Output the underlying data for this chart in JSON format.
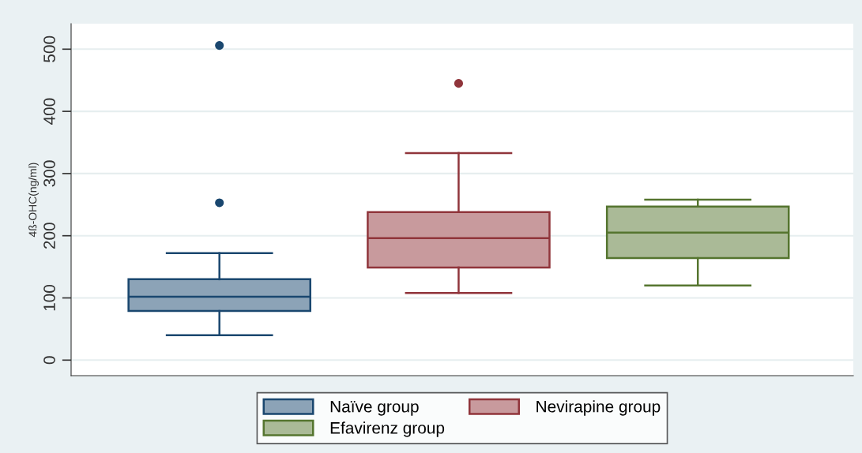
{
  "chart_data": {
    "type": "box",
    "ylabel": "4ß-OHC(ng/ml)",
    "categories": [
      null
    ],
    "ylim": [
      -25,
      541
    ],
    "yticks": [
      0,
      100,
      200,
      300,
      400,
      500
    ],
    "grid": "y",
    "legend": "bottom",
    "tick_labels": "y",
    "series": [
      {
        "name": "Naïve group",
        "color": "#1a476f",
        "boxes": [
          {
            "low": 40,
            "q1": 79,
            "median": 102,
            "q3": 130,
            "high": 172,
            "outliers": [
              253,
              506
            ]
          }
        ]
      },
      {
        "name": "Nevirapine group",
        "color": "#90353b",
        "boxes": [
          {
            "low": 108,
            "q1": 149,
            "median": 196,
            "q3": 238,
            "high": 333,
            "outliers": [
              445
            ]
          }
        ]
      },
      {
        "name": "Efavirenz group",
        "color": "#55752f",
        "boxes": [
          {
            "low": 120,
            "q1": 164,
            "median": 205,
            "q3": 247,
            "high": 258
          }
        ]
      }
    ]
  }
}
